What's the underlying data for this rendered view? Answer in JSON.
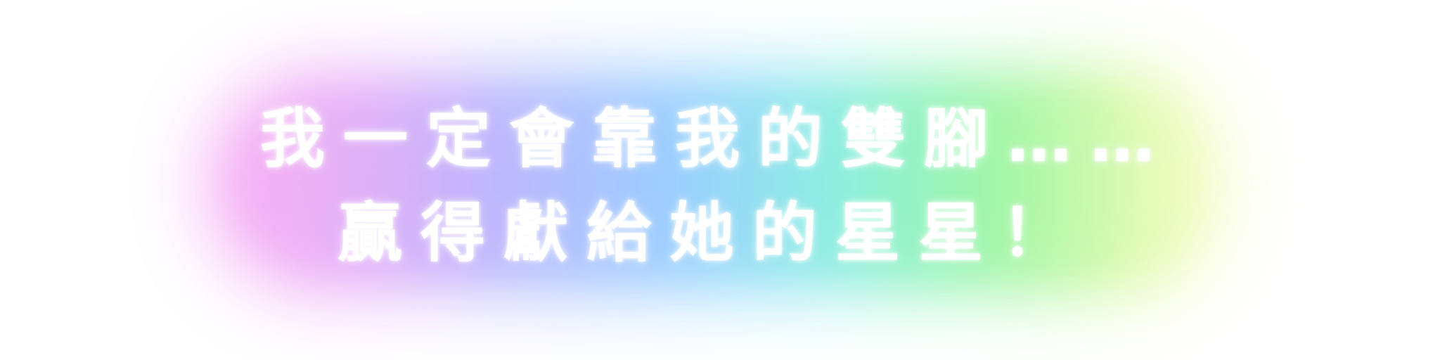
{
  "caption": {
    "line1": "我一定會靠我的雙腳……",
    "line2": "贏得獻給她的星星！"
  },
  "colors": {
    "text": "#ffffff",
    "glow_magenta": "#f49cf0",
    "glow_violet": "#a9b3ff",
    "glow_blue": "#8ccaff",
    "glow_green": "#7ef2b4",
    "glow_yellow": "#eafa9a"
  }
}
